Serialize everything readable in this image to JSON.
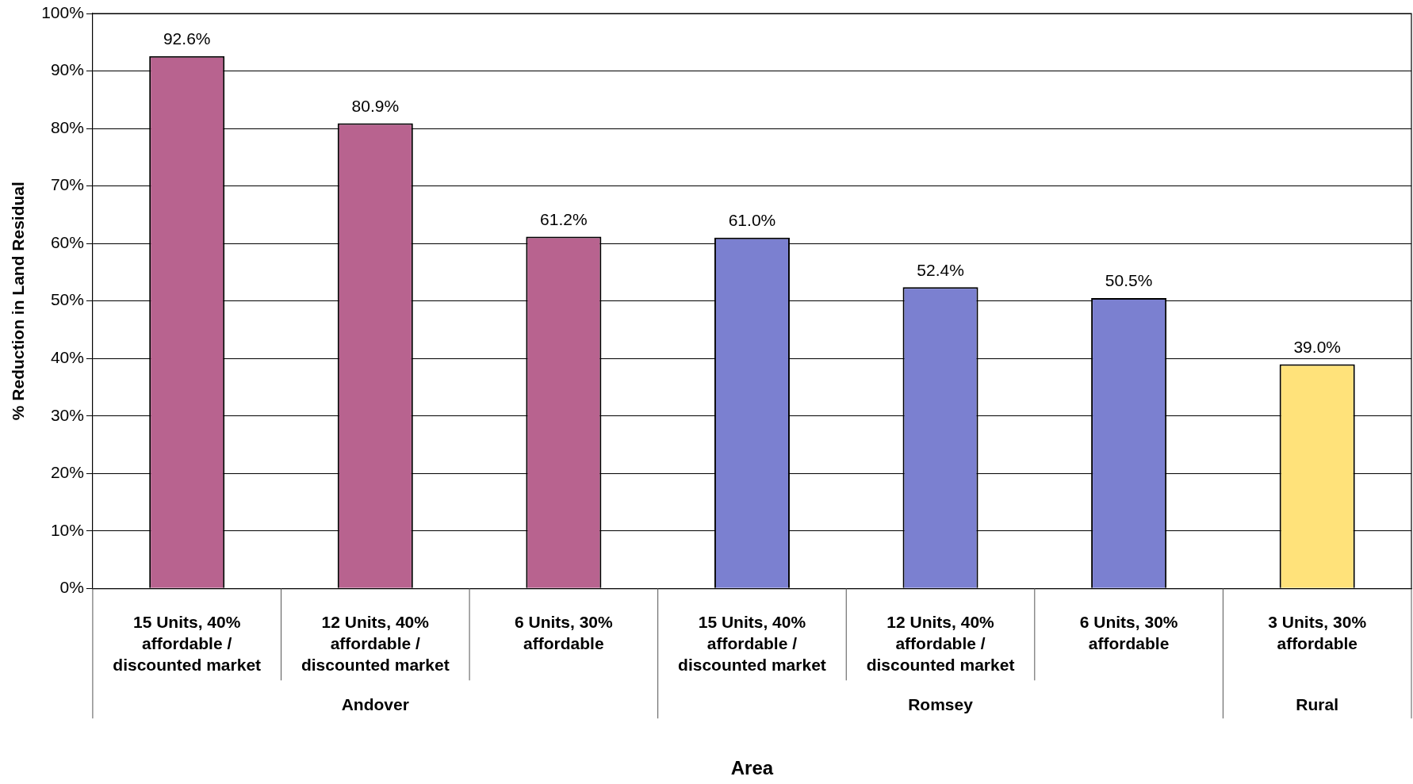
{
  "chart_data": {
    "type": "bar",
    "xlabel": "Area",
    "ylabel": "% Reduction in Land Residual",
    "categories": [
      "15 Units, 40% affordable / discounted market",
      "12 Units, 40% affordable / discounted market",
      "6 Units, 30% affordable",
      "15 Units, 40% affordable / discounted market",
      "12 Units, 40% affordable / discounted market",
      "6 Units, 30% affordable",
      "3 Units, 30% affordable"
    ],
    "values": [
      92.6,
      80.9,
      61.2,
      61.0,
      52.4,
      50.5,
      39.0
    ],
    "value_labels": [
      "92.6%",
      "80.9%",
      "61.2%",
      "61.0%",
      "52.4%",
      "50.5%",
      "39.0%"
    ],
    "colors": [
      "#b8638f",
      "#b8638f",
      "#b8638f",
      "#7b80d0",
      "#7b80d0",
      "#7b80d0",
      "#ffe27a"
    ],
    "annotations": [
      "Andover",
      "Romsey",
      "Rural"
    ],
    "ylim": [
      0,
      100
    ],
    "yticks": [
      {
        "value": 0,
        "label": "0%"
      },
      {
        "value": 10,
        "label": "10%"
      },
      {
        "value": 20,
        "label": "20%"
      },
      {
        "value": 30,
        "label": "30%"
      },
      {
        "value": 40,
        "label": "40%"
      },
      {
        "value": 50,
        "label": "50%"
      },
      {
        "value": 60,
        "label": "60%"
      },
      {
        "value": 70,
        "label": "70%"
      },
      {
        "value": 80,
        "label": "80%"
      },
      {
        "value": 90,
        "label": "90%"
      },
      {
        "value": 100,
        "label": "100%"
      }
    ],
    "grid": "y",
    "legend": false
  }
}
